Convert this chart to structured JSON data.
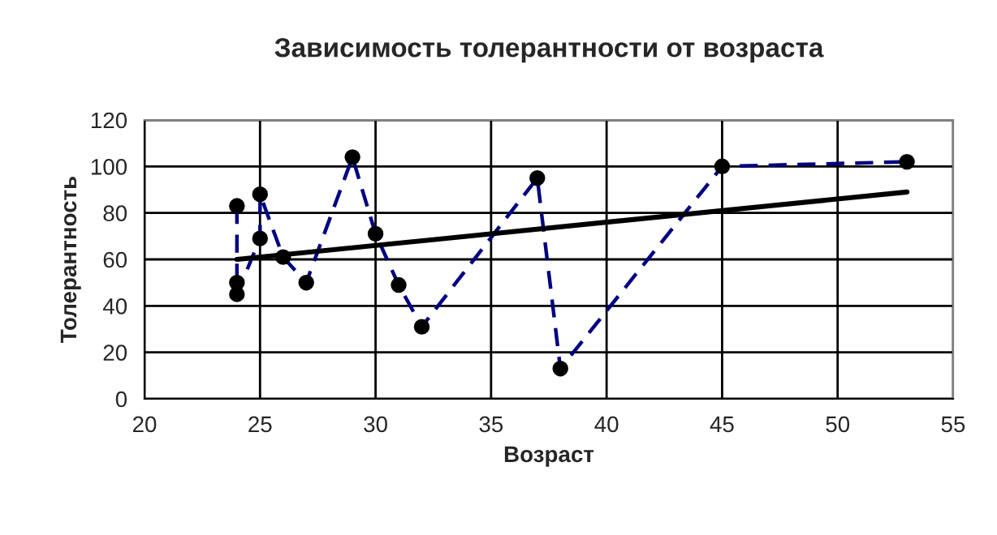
{
  "chart_data": {
    "type": "line",
    "title": "Зависимость толерантности от возраста",
    "xlabel": "Возраст",
    "ylabel": "Толерантность",
    "xlim": [
      20,
      55
    ],
    "xticks": [
      20,
      25,
      30,
      35,
      40,
      45,
      50,
      55
    ],
    "ylim": [
      0,
      120
    ],
    "yticks": [
      0,
      20,
      40,
      60,
      80,
      100,
      120
    ],
    "grid": true,
    "legend": false,
    "series": [
      {
        "color": "#000080",
        "line_style": "dashed",
        "marker": "circle",
        "colors": [
          "#000000",
          "#000000",
          "#000000",
          "#000000",
          "#000000",
          "#000000",
          "#000000",
          "#000000",
          "#000000",
          "#000000",
          "#000000",
          "#000000",
          "#000000",
          "#000000",
          "#000000"
        ],
        "x": [
          24,
          24,
          24,
          25,
          25,
          26,
          27,
          29,
          30,
          31,
          32,
          37,
          38,
          45,
          53
        ],
        "values": [
          83,
          50,
          45,
          69,
          88,
          61,
          50,
          104,
          71,
          49,
          31,
          95,
          13,
          100,
          102
        ]
      },
      {
        "type": "line",
        "color": "#000000",
        "line_style": "solid",
        "marker": "none",
        "x": [
          24,
          53
        ],
        "values": [
          60,
          89
        ]
      }
    ]
  }
}
